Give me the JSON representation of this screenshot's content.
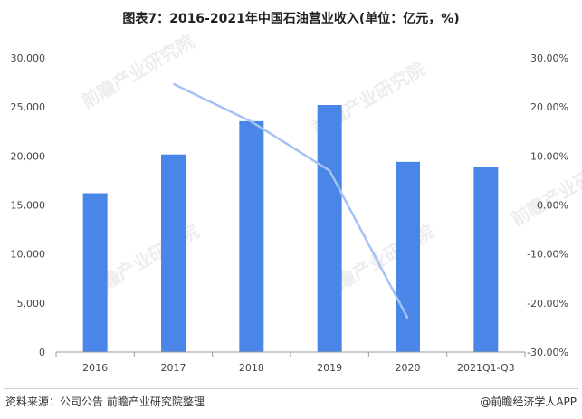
{
  "title": "图表7：2016-2021年中国石油营业收入(单位：亿元，%)",
  "source": "资料来源：公司公告 前瞻产业研究院整理",
  "credit": "@前瞻经济学人APP",
  "watermark": "前瞻产业研究院",
  "colors": {
    "bar": "#4a86e8",
    "line": "#a4c2f4",
    "axis": "#999999"
  },
  "chart_data": {
    "type": "bar",
    "categories": [
      "2016",
      "2017",
      "2018",
      "2019",
      "2020",
      "2021Q1-Q3"
    ],
    "series": [
      {
        "type": "bar",
        "axis": "left",
        "values": [
          16200,
          20150,
          23550,
          25200,
          19400,
          18850
        ]
      },
      {
        "type": "line",
        "axis": "right",
        "values": [
          null,
          24.7,
          17.0,
          7.0,
          -23.1,
          null
        ]
      }
    ],
    "ylim_left": [
      0,
      30000
    ],
    "ylim_right": [
      -30,
      30
    ],
    "yticks_left": [
      "0",
      "5,000",
      "10,000",
      "15,000",
      "20,000",
      "25,000",
      "30,000"
    ],
    "yticks_right": [
      "-30.00%",
      "-20.00%",
      "-10.00%",
      "0.00%",
      "10.00%",
      "20.00%",
      "30.00%"
    ],
    "grid": false,
    "legend": "none"
  }
}
